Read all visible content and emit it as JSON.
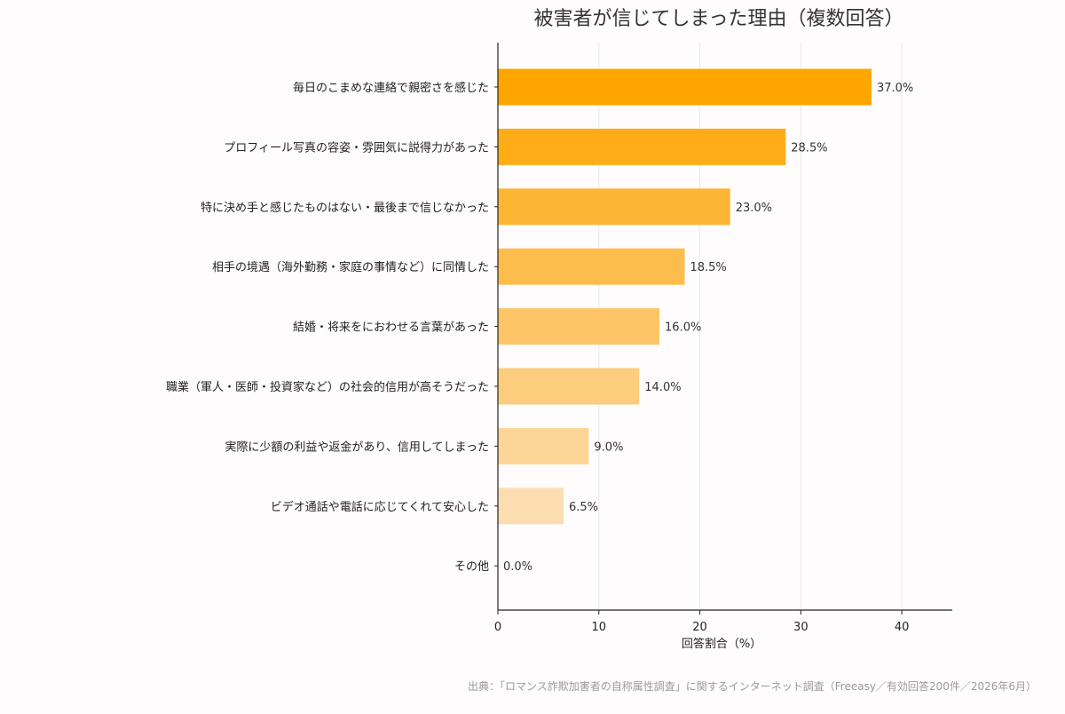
{
  "chart_data": {
    "type": "bar",
    "orientation": "horizontal",
    "title": "被害者が信じてしまった理由（複数回答）",
    "xlabel": "回答割合（%）",
    "ylabel": "",
    "xlim": [
      0,
      45
    ],
    "xticks": [
      0,
      10,
      20,
      30,
      40
    ],
    "grid": "vertical",
    "categories": [
      "毎日のこまめな連絡で親密さを感じた",
      "プロフィール写真の容姿・雰囲気に説得力があった",
      "特に決め手と感じたものはない・最後まで信じなかった",
      "相手の境遇（海外勤務・家庭の事情など）に同情した",
      "結婚・将来をにおわせる言葉があった",
      "職業（軍人・医師・投資家など）の社会的信用が高そうだった",
      "実際に少額の利益や返金があり、信用してしまった",
      "ビデオ通話や電話に応じてくれて安心した",
      "その他"
    ],
    "values": [
      37.0,
      28.5,
      23.0,
      18.5,
      16.0,
      14.0,
      9.0,
      6.5,
      0.0
    ],
    "value_labels": [
      "37.0%",
      "28.5%",
      "23.0%",
      "18.5%",
      "16.0%",
      "14.0%",
      "9.0%",
      "6.5%",
      "0.0%"
    ],
    "bar_colors": [
      "#ffa500",
      "#fead19",
      "#fdb534",
      "#fdbd4d",
      "#fdc566",
      "#fdcd7e",
      "#fdd597",
      "#fcddb0",
      "#fce5c9"
    ],
    "axis_color": "#222222",
    "grid_color": "#e8e8ef"
  },
  "source_note": "出典：「ロマンス詐欺加害者の自称属性調査」に関するインターネット調査（Freeasy／有効回答200件／2026年6月）"
}
